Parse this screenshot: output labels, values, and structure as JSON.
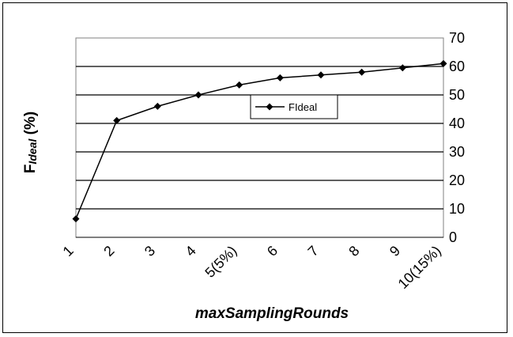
{
  "chart_data": {
    "type": "line",
    "categories": [
      "1",
      "2",
      "3",
      "4",
      "5(5%)",
      "6",
      "7",
      "8",
      "9",
      "10(15%)"
    ],
    "series": [
      {
        "name": "FIdeal",
        "values": [
          6.5,
          41,
          46,
          50,
          53.5,
          56,
          57,
          58,
          59.5,
          61
        ]
      }
    ],
    "xlabel": "maxSamplingRounds",
    "ylabel": {
      "main": "F",
      "sub": "Ideal",
      "suffix": " (%)"
    },
    "ylim": [
      0,
      70
    ],
    "yticks": [
      0,
      10,
      20,
      30,
      40,
      50,
      60,
      70
    ],
    "y_axis_side": "right",
    "grid": true,
    "legend_placement": "center-right",
    "marker": "diamond",
    "line_color": "#000000"
  }
}
